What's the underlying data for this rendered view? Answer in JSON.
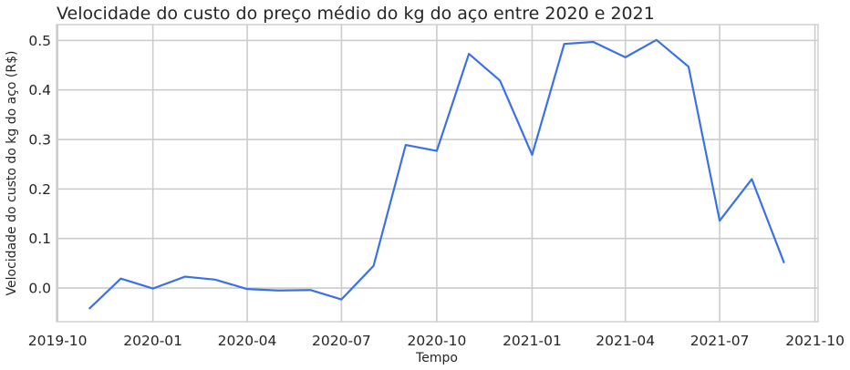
{
  "chart_data": {
    "type": "line",
    "title": "Velocidade do custo do preço médio do kg do aço entre 2020 e 2021",
    "xlabel": "Tempo",
    "ylabel": "Velocidade do custo do kg do aço (R$)",
    "x_tick_labels": [
      "2019-10",
      "2020-01",
      "2020-04",
      "2020-07",
      "2020-10",
      "2021-01",
      "2021-04",
      "2021-07",
      "2021-10"
    ],
    "y_tick_labels": [
      "0.0",
      "0.1",
      "0.2",
      "0.3",
      "0.4",
      "0.5"
    ],
    "yticks": [
      0.0,
      0.1,
      0.2,
      0.3,
      0.4,
      0.5
    ],
    "ylim": [
      -0.068,
      0.532
    ],
    "xlim": [
      "2019-09-30",
      "2021-10-04"
    ],
    "grid": true,
    "legend": "none",
    "x": [
      "2019-11-01",
      "2019-12-01",
      "2020-01-01",
      "2020-02-01",
      "2020-03-01",
      "2020-04-01",
      "2020-05-01",
      "2020-06-01",
      "2020-07-01",
      "2020-08-01",
      "2020-09-01",
      "2020-10-01",
      "2020-11-01",
      "2020-12-01",
      "2021-01-01",
      "2021-02-01",
      "2021-03-01",
      "2021-04-01",
      "2021-05-01",
      "2021-06-01",
      "2021-07-01",
      "2021-08-01",
      "2021-09-01"
    ],
    "series": [
      {
        "values": [
          -0.041,
          0.019,
          -0.001,
          0.023,
          0.017,
          -0.002,
          -0.005,
          -0.004,
          -0.023,
          0.045,
          0.289,
          0.277,
          0.473,
          0.419,
          0.269,
          0.493,
          0.497,
          0.466,
          0.501,
          0.447,
          0.136,
          0.22,
          0.052
        ],
        "color": "#3a71ea"
      }
    ]
  }
}
